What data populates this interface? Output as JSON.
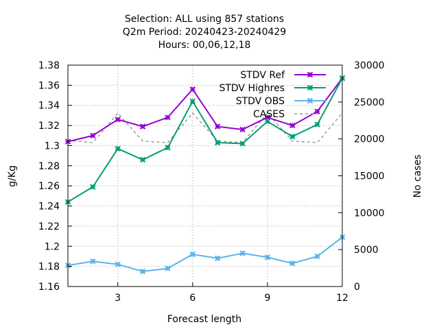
{
  "chart_data": {
    "type": "line",
    "title_lines": [
      "Selection: ALL using   857 stations",
      "Q2m   Period: 20240423-20240429",
      "Hours:  00,06,12,18"
    ],
    "xlabel": "Forecast length",
    "ylabel": "g/Kg",
    "y2label": "No cases",
    "xlim": [
      1,
      12
    ],
    "ylim": [
      1.16,
      1.38
    ],
    "y2lim": [
      0,
      30000
    ],
    "xticks": [
      3,
      6,
      9,
      12
    ],
    "yticks": [
      "1.16",
      "1.18",
      "1.2",
      "1.22",
      "1.24",
      "1.26",
      "1.28",
      "1.3",
      "1.32",
      "1.34",
      "1.36",
      "1.38"
    ],
    "y2ticks": [
      "0",
      "5000",
      "10000",
      "15000",
      "20000",
      "25000",
      "30000"
    ],
    "grid": true,
    "legend_position": "top-right",
    "x": [
      1,
      2,
      3,
      4,
      5,
      6,
      7,
      8,
      9,
      10,
      11,
      12
    ],
    "series": [
      {
        "name": "STDV Ref",
        "color": "#9400d3",
        "marker": "x",
        "axis": "y1",
        "values": [
          1.304,
          1.31,
          1.326,
          1.319,
          1.328,
          1.356,
          1.319,
          1.316,
          1.328,
          1.32,
          1.334,
          1.367
        ]
      },
      {
        "name": "STDV Highres",
        "color": "#009e73",
        "marker": "x",
        "axis": "y1",
        "values": [
          1.244,
          1.259,
          1.297,
          1.286,
          1.298,
          1.344,
          1.303,
          1.302,
          1.324,
          1.309,
          1.321,
          1.367
        ]
      },
      {
        "name": "STDV OBS",
        "color": "#56b4e9",
        "marker": "x",
        "axis": "y1",
        "values": [
          1.181,
          1.185,
          1.182,
          1.175,
          1.178,
          1.192,
          1.188,
          1.193,
          1.189,
          1.183,
          1.19,
          1.209
        ]
      },
      {
        "name": "CASES",
        "color": "#999999",
        "marker": "none",
        "dashed": true,
        "axis": "y2",
        "values": [
          19800,
          19500,
          23500,
          19700,
          19500,
          23500,
          19700,
          19500,
          23500,
          19700,
          19500,
          23500
        ]
      }
    ]
  }
}
